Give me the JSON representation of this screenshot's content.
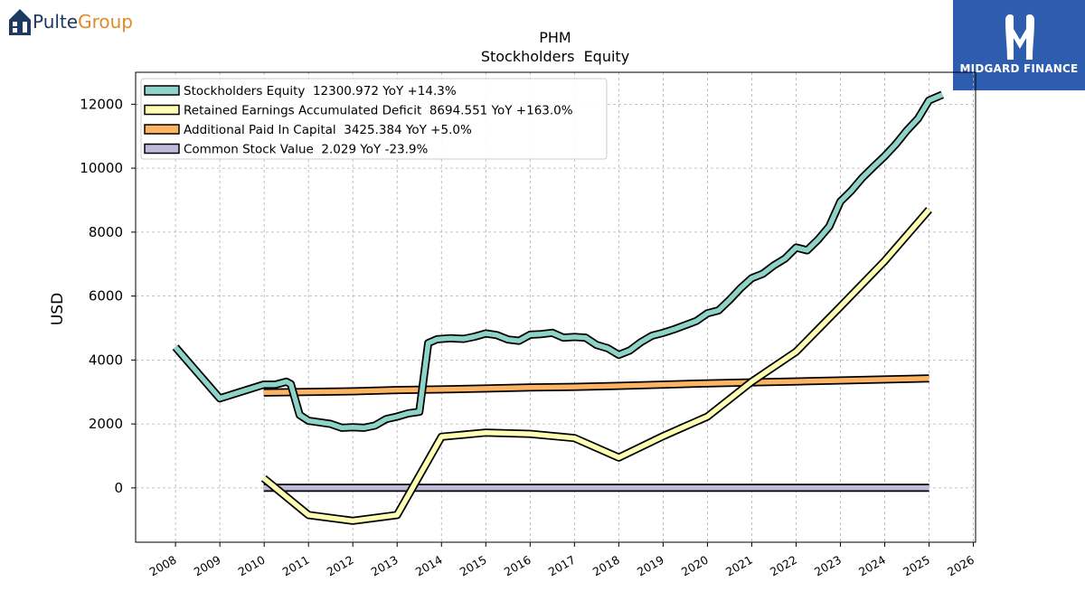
{
  "brand": {
    "name_part1": "Pulte",
    "name_part2": "Group",
    "icon": "house-icon"
  },
  "badge": {
    "text": "MIDGARD FINANCE",
    "icon": "midgard-logo-icon",
    "color": "#2e5db0"
  },
  "chart_data": {
    "type": "line",
    "title": "PHM",
    "subtitle": "Stockholders  Equity",
    "xlabel": "",
    "ylabel": "USD",
    "xlim": [
      2007.1,
      2026.05
    ],
    "ylim": [
      -1700,
      13000
    ],
    "x_ticks": [
      "2008",
      "2009",
      "2010",
      "2011",
      "2012",
      "2013",
      "2014",
      "2015",
      "2016",
      "2017",
      "2018",
      "2019",
      "2020",
      "2021",
      "2022",
      "2023",
      "2024",
      "2025",
      "2026"
    ],
    "y_ticks": [
      0,
      2000,
      4000,
      6000,
      8000,
      10000,
      12000
    ],
    "grid": true,
    "legend_position": "top-left",
    "series": [
      {
        "name": "Stockholders Equity",
        "legend_label": "Stockholders Equity  12300.972 YoY +14.3%",
        "color": "#8dd3c7",
        "points": [
          [
            2008,
            4400
          ],
          [
            2009,
            2800
          ],
          [
            2009.99,
            3230
          ],
          [
            2010.25,
            3230
          ],
          [
            2010.5,
            3320
          ],
          [
            2010.6,
            3250
          ],
          [
            2010.8,
            2280
          ],
          [
            2011,
            2100
          ],
          [
            2011.25,
            2050
          ],
          [
            2011.5,
            2000
          ],
          [
            2011.75,
            1880
          ],
          [
            2012,
            1900
          ],
          [
            2012.25,
            1880
          ],
          [
            2012.5,
            1950
          ],
          [
            2012.75,
            2150
          ],
          [
            2013,
            2230
          ],
          [
            2013.25,
            2330
          ],
          [
            2013.5,
            2380
          ],
          [
            2013.7,
            4530
          ],
          [
            2013.9,
            4650
          ],
          [
            2014.2,
            4680
          ],
          [
            2014.5,
            4660
          ],
          [
            2014.75,
            4730
          ],
          [
            2015,
            4830
          ],
          [
            2015.25,
            4780
          ],
          [
            2015.5,
            4640
          ],
          [
            2015.75,
            4600
          ],
          [
            2016,
            4790
          ],
          [
            2016.25,
            4810
          ],
          [
            2016.5,
            4850
          ],
          [
            2016.75,
            4700
          ],
          [
            2017,
            4720
          ],
          [
            2017.25,
            4700
          ],
          [
            2017.5,
            4470
          ],
          [
            2017.75,
            4370
          ],
          [
            2018,
            4160
          ],
          [
            2018.25,
            4300
          ],
          [
            2018.5,
            4560
          ],
          [
            2018.75,
            4760
          ],
          [
            2019,
            4850
          ],
          [
            2019.25,
            4960
          ],
          [
            2019.5,
            5090
          ],
          [
            2019.75,
            5220
          ],
          [
            2020,
            5460
          ],
          [
            2020.25,
            5550
          ],
          [
            2020.5,
            5880
          ],
          [
            2020.75,
            6250
          ],
          [
            2021,
            6560
          ],
          [
            2021.25,
            6700
          ],
          [
            2021.5,
            6960
          ],
          [
            2021.75,
            7170
          ],
          [
            2022,
            7520
          ],
          [
            2022.25,
            7430
          ],
          [
            2022.5,
            7770
          ],
          [
            2022.75,
            8180
          ],
          [
            2023,
            8960
          ],
          [
            2023.25,
            9300
          ],
          [
            2023.5,
            9710
          ],
          [
            2023.75,
            10050
          ],
          [
            2024,
            10380
          ],
          [
            2024.25,
            10750
          ],
          [
            2024.5,
            11180
          ],
          [
            2024.75,
            11550
          ],
          [
            2025,
            12120
          ],
          [
            2025.3,
            12300
          ]
        ]
      },
      {
        "name": "Retained Earnings Accumulated Deficit",
        "legend_label": "Retained Earnings Accumulated Deficit  8694.551 YoY +163.0%",
        "color": "#ffffb3",
        "points": [
          [
            2009.99,
            300
          ],
          [
            2011,
            -850
          ],
          [
            2012,
            -1030
          ],
          [
            2013,
            -850
          ],
          [
            2014,
            1600
          ],
          [
            2015,
            1730
          ],
          [
            2016,
            1690
          ],
          [
            2017,
            1560
          ],
          [
            2018,
            950
          ],
          [
            2019,
            1620
          ],
          [
            2020,
            2230
          ],
          [
            2021,
            3320
          ],
          [
            2022,
            4260
          ],
          [
            2023,
            5670
          ],
          [
            2024,
            7100
          ],
          [
            2025,
            8700
          ]
        ]
      },
      {
        "name": "Additional Paid In Capital",
        "legend_label": "Additional Paid In Capital  3425.384 YoY +5.0%",
        "color": "#fdb462",
        "points": [
          [
            2009.99,
            2980
          ],
          [
            2012,
            3020
          ],
          [
            2013,
            3060
          ],
          [
            2014,
            3080
          ],
          [
            2015,
            3110
          ],
          [
            2016,
            3140
          ],
          [
            2017,
            3160
          ],
          [
            2018,
            3190
          ],
          [
            2019,
            3230
          ],
          [
            2020,
            3270
          ],
          [
            2021,
            3300
          ],
          [
            2022,
            3330
          ],
          [
            2023,
            3360
          ],
          [
            2024,
            3390
          ],
          [
            2025,
            3425
          ]
        ]
      },
      {
        "name": "Common Stock Value",
        "legend_label": "Common Stock Value  2.029 YoY -23.9%",
        "color": "#bebada",
        "points": [
          [
            2009.99,
            3
          ],
          [
            2011,
            3
          ],
          [
            2012,
            3
          ],
          [
            2013,
            3
          ],
          [
            2014,
            3
          ],
          [
            2015,
            3
          ],
          [
            2016,
            3
          ],
          [
            2017,
            3
          ],
          [
            2018,
            3
          ],
          [
            2019,
            3
          ],
          [
            2020,
            3
          ],
          [
            2021,
            3
          ],
          [
            2022,
            3
          ],
          [
            2023,
            3
          ],
          [
            2024,
            3
          ],
          [
            2025,
            2
          ]
        ]
      }
    ]
  }
}
